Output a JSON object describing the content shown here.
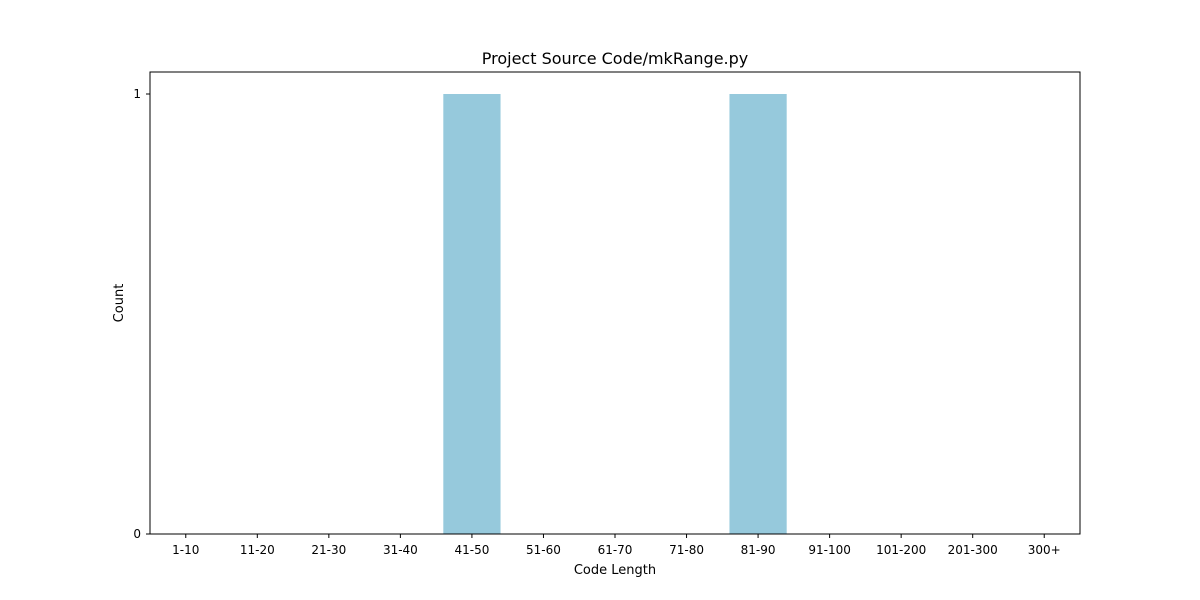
{
  "chart_data": {
    "type": "bar",
    "title": "Project Source Code/mkRange.py",
    "xlabel": "Code Length",
    "ylabel": "Count",
    "categories": [
      "1-10",
      "11-20",
      "21-30",
      "31-40",
      "41-50",
      "51-60",
      "61-70",
      "71-80",
      "81-90",
      "91-100",
      "101-200",
      "201-300",
      "300+"
    ],
    "values": [
      0,
      0,
      0,
      0,
      1,
      0,
      0,
      0,
      1,
      0,
      0,
      0,
      0
    ],
    "ylim": [
      0,
      1.05
    ],
    "yticks": [
      0,
      1
    ],
    "ytick_labels": [
      "0",
      "1"
    ],
    "bar_color": "#96c9dc",
    "grid": false,
    "legend": "none"
  }
}
